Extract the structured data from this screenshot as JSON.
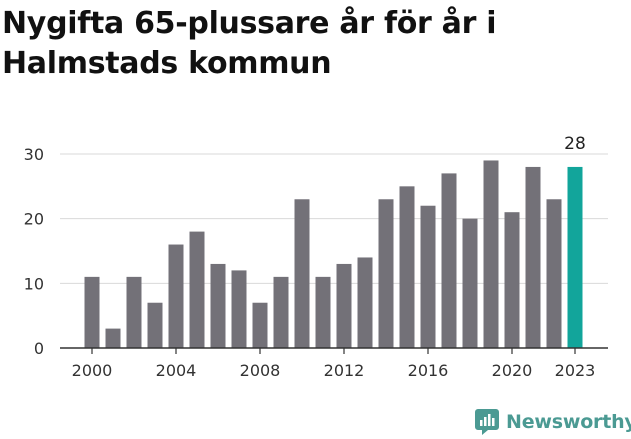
{
  "title": "Nygifta 65-plussare år för år i Halmstads kommun",
  "brand": {
    "name": "Newsworthy",
    "icon": "newsworthy-logo-icon",
    "color": "#4b9a93"
  },
  "chart_data": {
    "type": "bar",
    "title": "Nygifta 65-plussare år för år i Halmstads kommun",
    "xlabel": "",
    "ylabel": "",
    "ylim": [
      0,
      30
    ],
    "yticks": [
      0,
      10,
      20,
      30
    ],
    "xtick_labels": [
      "2000",
      "2004",
      "2008",
      "2012",
      "2016",
      "2020",
      "2023"
    ],
    "grid": true,
    "legend": "none",
    "categories": [
      "2000",
      "2001",
      "2002",
      "2003",
      "2004",
      "2005",
      "2006",
      "2007",
      "2008",
      "2009",
      "2010",
      "2011",
      "2012",
      "2013",
      "2014",
      "2015",
      "2016",
      "2017",
      "2018",
      "2019",
      "2020",
      "2021",
      "2022",
      "2023"
    ],
    "values": [
      11,
      3,
      11,
      7,
      16,
      18,
      13,
      12,
      7,
      11,
      23,
      11,
      13,
      14,
      23,
      25,
      22,
      27,
      20,
      29,
      21,
      28,
      23,
      28
    ],
    "colors": {
      "default": "#737178",
      "highlight": "#12a59b",
      "grid": "#d9d9d9",
      "axis": "#333333"
    },
    "highlight_category": "2023",
    "annotations": [
      {
        "category": "2023",
        "text": "28"
      }
    ]
  }
}
